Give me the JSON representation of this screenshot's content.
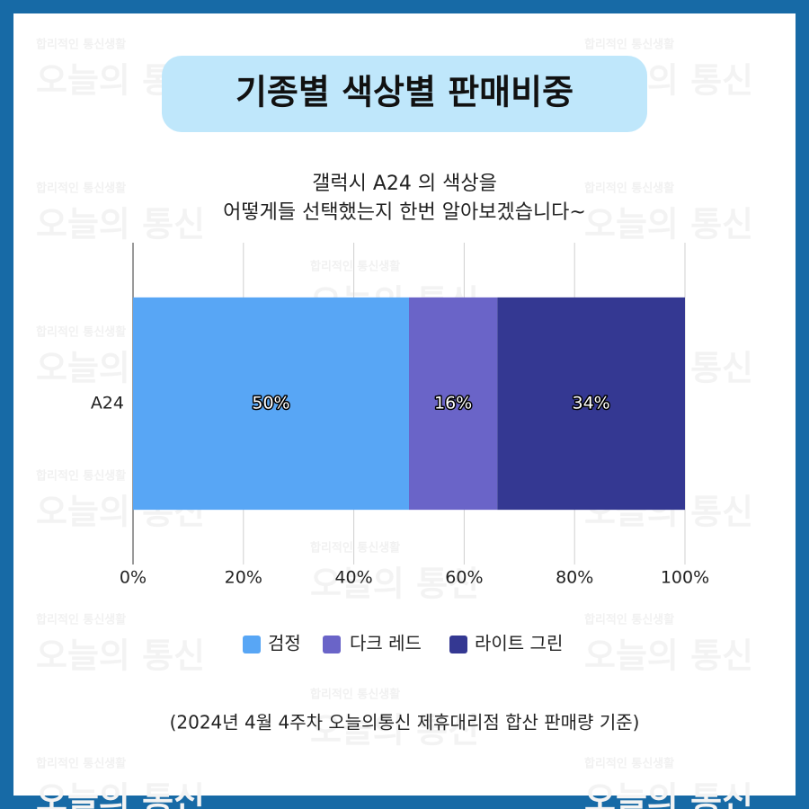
{
  "watermark": {
    "small": "합리적인 통신생활",
    "big": "오늘의 통신"
  },
  "chart_data": {
    "type": "bar",
    "orientation": "horizontal",
    "stacked": true,
    "title": "기종별 색상별 판매비중",
    "subtitle": [
      "갤럭시 A24 의 색상을",
      "어떻게들 선택했는지 한번 알아보겠습니다~"
    ],
    "categories": [
      "A24"
    ],
    "series": [
      {
        "name": "검정",
        "color": "#58a6f5",
        "values": [
          50
        ],
        "value_labels": [
          "50%"
        ]
      },
      {
        "name": "다크 레드",
        "color": "#6a64c8",
        "values": [
          16
        ],
        "value_labels": [
          "16%"
        ]
      },
      {
        "name": "라이트 그린",
        "color": "#343892",
        "values": [
          34
        ],
        "value_labels": [
          "34%"
        ]
      }
    ],
    "xlim": [
      0,
      100
    ],
    "xticks": [
      {
        "value": 0,
        "label": "0%"
      },
      {
        "value": 20,
        "label": "20%"
      },
      {
        "value": 40,
        "label": "40%"
      },
      {
        "value": 60,
        "label": "60%"
      },
      {
        "value": 80,
        "label": "80%"
      },
      {
        "value": 100,
        "label": "100%"
      }
    ],
    "grid": true,
    "legend": "bottom",
    "footnote": "(2024년 4월 4주차 오늘의통신 제휴대리점 합산 판매량 기준)"
  }
}
